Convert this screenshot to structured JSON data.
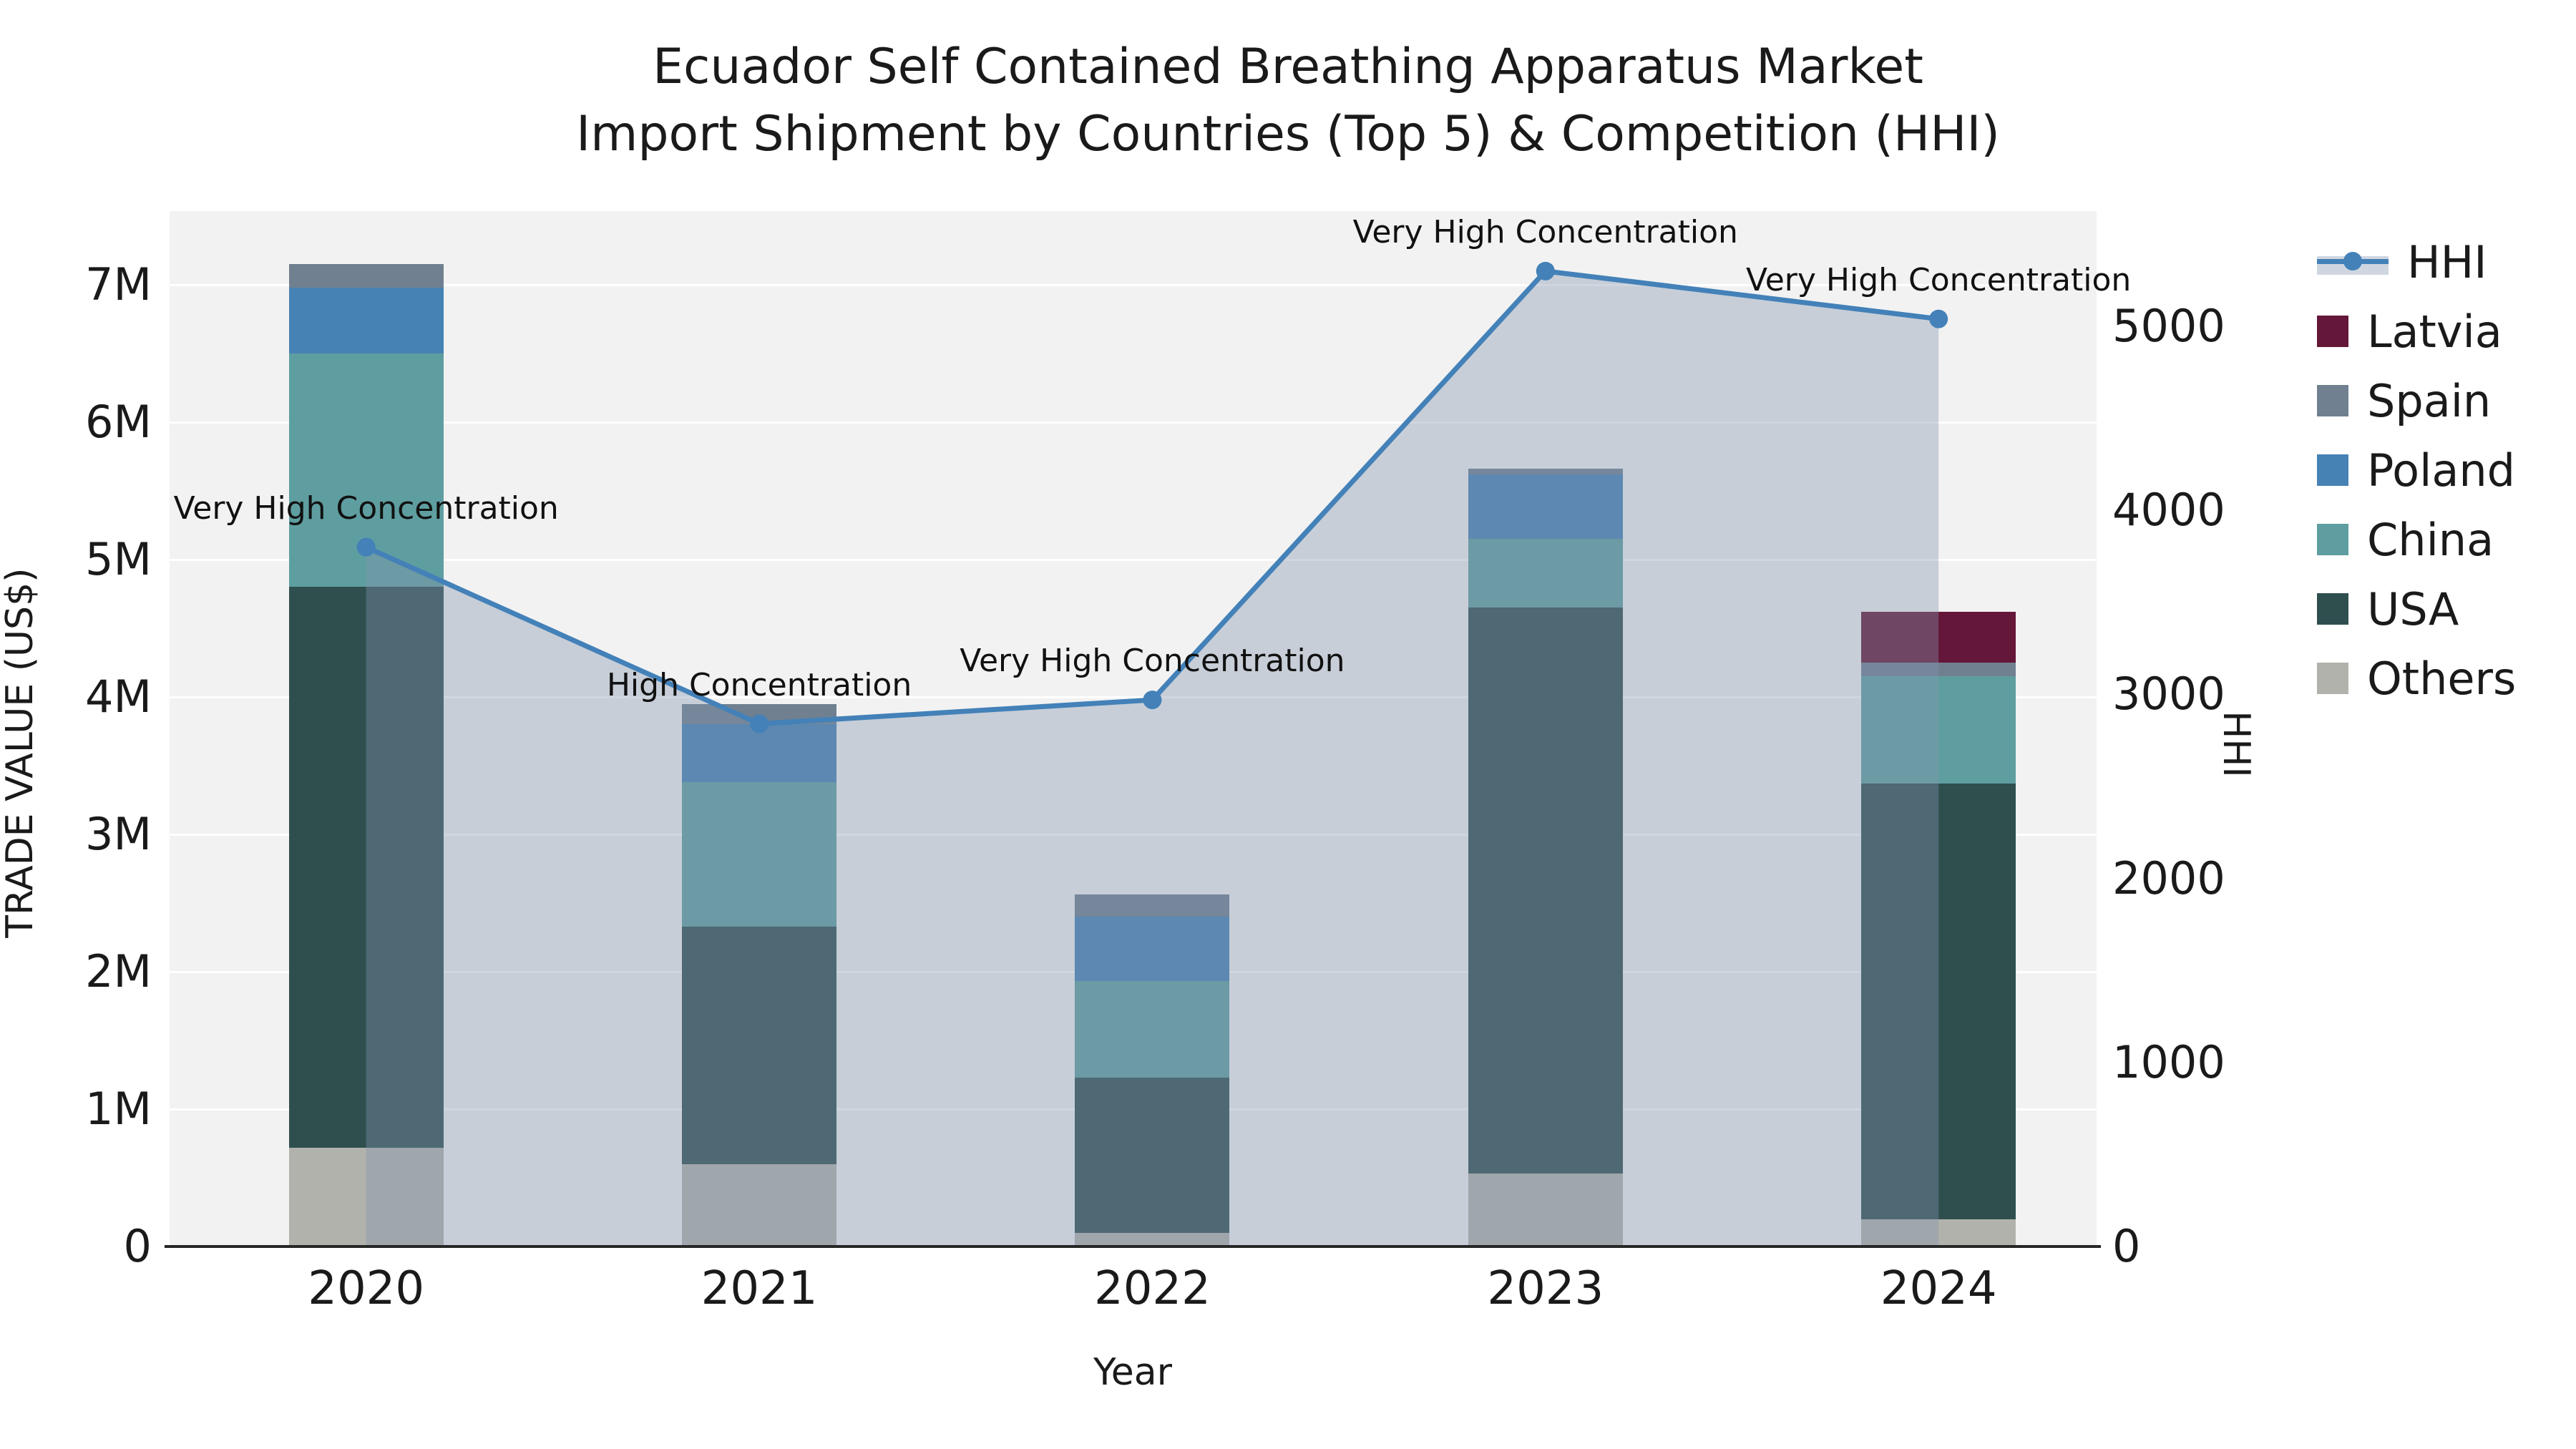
{
  "title": {
    "line1": "Ecuador Self Contained Breathing Apparatus Market",
    "line2": "Import Shipment by Countries (Top 5) & Competition (HHI)"
  },
  "axes": {
    "x_label": "Year",
    "y_left_label": "TRADE VALUE (US$)",
    "y_right_label": "HHI",
    "y_left_ticks": [
      "0",
      "1M",
      "2M",
      "3M",
      "4M",
      "5M",
      "6M",
      "7M"
    ],
    "y_right_ticks": [
      "0",
      "1000",
      "2000",
      "3000",
      "4000",
      "5000"
    ],
    "x_ticks": [
      "2020",
      "2021",
      "2022",
      "2023",
      "2024"
    ]
  },
  "legend": {
    "items": [
      {
        "label": "HHI",
        "kind": "line"
      },
      {
        "label": "Latvia",
        "kind": "patch",
        "color_key": "latvia"
      },
      {
        "label": "Spain",
        "kind": "patch",
        "color_key": "spain"
      },
      {
        "label": "Poland",
        "kind": "patch",
        "color_key": "poland"
      },
      {
        "label": "China",
        "kind": "patch",
        "color_key": "china"
      },
      {
        "label": "USA",
        "kind": "patch",
        "color_key": "usa"
      },
      {
        "label": "Others",
        "kind": "patch",
        "color_key": "others"
      }
    ]
  },
  "colors": {
    "latvia": "#641738",
    "spain": "#708090",
    "poland": "#4682b4",
    "china": "#5f9ea0",
    "usa": "#2f4f4f",
    "others": "#b2b2ac",
    "hhi_line": "#4381b8",
    "hhi_fill": "rgba(130,146,173,0.38)",
    "plot_bg": "#f2f2f2",
    "grid": "#ffffff",
    "axis_line": "#262626"
  },
  "chart_data": {
    "type": "combo (stacked bar + line)",
    "categories": [
      "2020",
      "2021",
      "2022",
      "2023",
      "2024"
    ],
    "bar_units": "TRADE VALUE (US$), millions",
    "stack_order_bottom_to_top": [
      "Others",
      "USA",
      "China",
      "Poland",
      "Spain",
      "Latvia"
    ],
    "bar_series": [
      {
        "name": "Others",
        "values": [
          0.72,
          0.6,
          0.1,
          0.53,
          0.2
        ]
      },
      {
        "name": "USA",
        "values": [
          4.08,
          1.73,
          1.13,
          4.12,
          3.17
        ]
      },
      {
        "name": "China",
        "values": [
          1.7,
          1.05,
          0.7,
          0.5,
          0.78
        ]
      },
      {
        "name": "Poland",
        "values": [
          0.48,
          0.42,
          0.47,
          0.47,
          0.0
        ]
      },
      {
        "name": "Spain",
        "values": [
          0.17,
          0.15,
          0.16,
          0.04,
          0.1
        ]
      },
      {
        "name": "Latvia",
        "values": [
          0.0,
          0.0,
          0.0,
          0.0,
          0.37
        ]
      }
    ],
    "bar_totals": [
      7.15,
      3.95,
      2.56,
      5.66,
      4.62
    ],
    "line_series": {
      "name": "HHI",
      "axis": "right",
      "values": [
        3800,
        2840,
        2970,
        5300,
        5040
      ]
    },
    "line_has_area_fill": true,
    "annotations": [
      {
        "category": "2020",
        "text": "Very High Concentration"
      },
      {
        "category": "2021",
        "text": "High Concentration"
      },
      {
        "category": "2022",
        "text": "Very High Concentration"
      },
      {
        "category": "2023",
        "text": "Very High Concentration"
      },
      {
        "category": "2024",
        "text": "Very High Concentration"
      }
    ],
    "y_left": {
      "label": "TRADE VALUE (US$)",
      "range": [
        0,
        7.53
      ],
      "tick_step": 1
    },
    "y_right": {
      "label": "HHI",
      "range": [
        0,
        5630
      ],
      "tick_step": 1000
    },
    "x_label": "Year",
    "grid": "horizontal white gridlines",
    "legend_position": "right"
  }
}
